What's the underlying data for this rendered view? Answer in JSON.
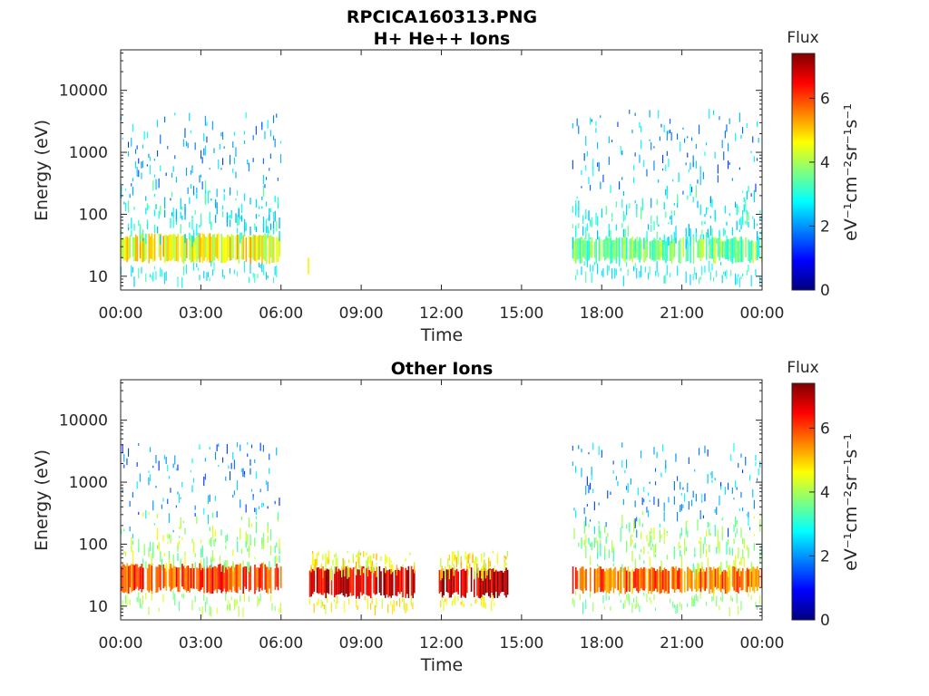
{
  "figure_title": "RPCICA160313.PNG",
  "colors": {
    "colormap": [
      "#00007f",
      "#0000ff",
      "#007fff",
      "#00ffff",
      "#7fff7f",
      "#ffff00",
      "#ff7f00",
      "#ff0000",
      "#7f0000"
    ],
    "axis": "#262626"
  },
  "chart_data": [
    {
      "type": "heatmap",
      "title": "H+ He++ Ions",
      "xlabel": "Time",
      "ylabel": "Energy (eV)",
      "x_ticks": [
        "00:00",
        "03:00",
        "06:00",
        "09:00",
        "12:00",
        "15:00",
        "18:00",
        "21:00",
        "00:00"
      ],
      "x_range_hours": [
        0,
        24
      ],
      "y_scale": "log",
      "y_ticks": [
        "10",
        "100",
        "1000",
        "10000"
      ],
      "y_range": [
        6,
        45000
      ],
      "colorbar": {
        "label": "Flux",
        "units": "eV⁻¹cm⁻²sr⁻¹s⁻¹",
        "ticks": [
          "0",
          "2",
          "4",
          "6"
        ],
        "range": [
          0,
          7.4
        ]
      },
      "regions": [
        {
          "t_start": 0.0,
          "t_end": 6.0,
          "e_low": 6,
          "e_high": 4500,
          "core_low": 18,
          "core_high": 45,
          "core_flux": 4.6,
          "bg_flux": 2.8,
          "sparse_flux": 1.3
        },
        {
          "t_start": 7.0,
          "t_end": 7.05,
          "e_low": 10,
          "e_high": 20,
          "core_low": 10,
          "core_high": 20,
          "core_flux": 4.0,
          "bg_flux": 4.0,
          "sparse_flux": 1.0
        },
        {
          "t_start": 16.9,
          "t_end": 24.0,
          "e_low": 6,
          "e_high": 5000,
          "core_low": 18,
          "core_high": 40,
          "core_flux": 3.6,
          "bg_flux": 2.9,
          "sparse_flux": 1.3
        }
      ]
    },
    {
      "type": "heatmap",
      "title": "Other Ions",
      "xlabel": "Time",
      "ylabel": "Energy (eV)",
      "x_ticks": [
        "00:00",
        "03:00",
        "06:00",
        "09:00",
        "12:00",
        "15:00",
        "18:00",
        "21:00",
        "00:00"
      ],
      "x_range_hours": [
        0,
        24
      ],
      "y_scale": "log",
      "y_ticks": [
        "10",
        "100",
        "1000",
        "10000"
      ],
      "y_range": [
        6,
        45000
      ],
      "colorbar": {
        "label": "Flux",
        "units": "eV⁻¹cm⁻²sr⁻¹s⁻¹",
        "ticks": [
          "0",
          "2",
          "4",
          "6"
        ],
        "range": [
          0,
          7.4
        ]
      },
      "regions": [
        {
          "t_start": 0.0,
          "t_end": 6.0,
          "e_low": 6,
          "e_high": 4500,
          "core_low": 18,
          "core_high": 45,
          "core_flux": 6.0,
          "bg_flux": 4.0,
          "sparse_flux": 1.2
        },
        {
          "t_start": 7.0,
          "t_end": 11.0,
          "e_low": 8,
          "e_high": 80,
          "core_low": 15,
          "core_high": 40,
          "core_flux": 6.9,
          "bg_flux": 4.6,
          "sparse_flux": 4.0
        },
        {
          "t_start": 11.9,
          "t_end": 14.5,
          "e_low": 9,
          "e_high": 80,
          "core_low": 15,
          "core_high": 38,
          "core_flux": 6.9,
          "bg_flux": 4.6,
          "sparse_flux": 4.0
        },
        {
          "t_start": 16.9,
          "t_end": 24.0,
          "e_low": 6,
          "e_high": 4500,
          "core_low": 18,
          "core_high": 40,
          "core_flux": 5.7,
          "bg_flux": 3.8,
          "sparse_flux": 1.3
        }
      ]
    }
  ]
}
